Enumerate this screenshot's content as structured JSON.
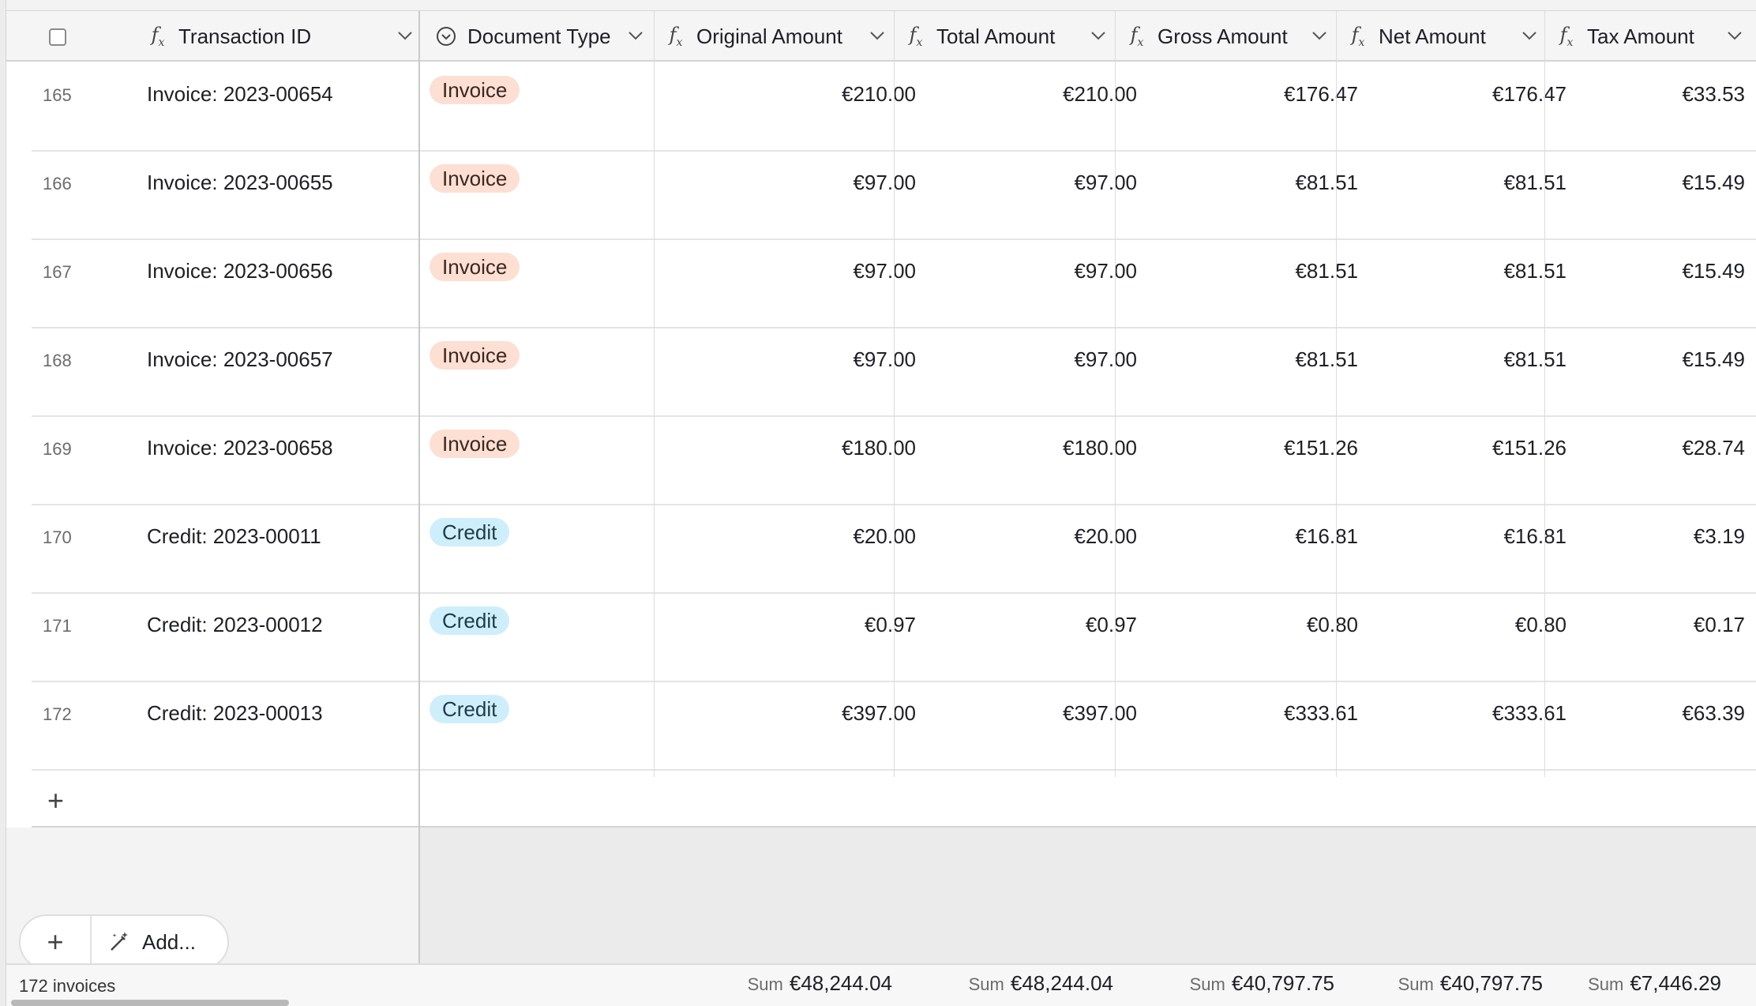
{
  "header": {
    "columns": [
      {
        "label": "Transaction ID",
        "icon": "formula-icon"
      },
      {
        "label": "Document Type",
        "icon": "single-select-icon"
      },
      {
        "label": "Original Amount",
        "icon": "formula-icon"
      },
      {
        "label": "Total Amount",
        "icon": "formula-icon"
      },
      {
        "label": "Gross Amount",
        "icon": "formula-icon"
      },
      {
        "label": "Net Amount",
        "icon": "formula-icon"
      },
      {
        "label": "Tax Amount",
        "icon": "formula-icon"
      }
    ]
  },
  "rows": [
    {
      "num": "165",
      "txid": "Invoice: 2023-00654",
      "type": "Invoice",
      "original": "€210.00",
      "total": "€210.00",
      "gross": "€176.47",
      "net": "€176.47",
      "tax": "€33.53"
    },
    {
      "num": "166",
      "txid": "Invoice: 2023-00655",
      "type": "Invoice",
      "original": "€97.00",
      "total": "€97.00",
      "gross": "€81.51",
      "net": "€81.51",
      "tax": "€15.49"
    },
    {
      "num": "167",
      "txid": "Invoice: 2023-00656",
      "type": "Invoice",
      "original": "€97.00",
      "total": "€97.00",
      "gross": "€81.51",
      "net": "€81.51",
      "tax": "€15.49"
    },
    {
      "num": "168",
      "txid": "Invoice: 2023-00657",
      "type": "Invoice",
      "original": "€97.00",
      "total": "€97.00",
      "gross": "€81.51",
      "net": "€81.51",
      "tax": "€15.49"
    },
    {
      "num": "169",
      "txid": "Invoice: 2023-00658",
      "type": "Invoice",
      "original": "€180.00",
      "total": "€180.00",
      "gross": "€151.26",
      "net": "€151.26",
      "tax": "€28.74"
    },
    {
      "num": "170",
      "txid": "Credit: 2023-00011",
      "type": "Credit",
      "original": "€20.00",
      "total": "€20.00",
      "gross": "€16.81",
      "net": "€16.81",
      "tax": "€3.19"
    },
    {
      "num": "171",
      "txid": "Credit: 2023-00012",
      "type": "Credit",
      "original": "€0.97",
      "total": "€0.97",
      "gross": "€0.80",
      "net": "€0.80",
      "tax": "€0.17"
    },
    {
      "num": "172",
      "txid": "Credit: 2023-00013",
      "type": "Credit",
      "original": "€397.00",
      "total": "€397.00",
      "gross": "€333.61",
      "net": "€333.61",
      "tax": "€63.39"
    }
  ],
  "pill_colors": {
    "Invoice": "#fddfd3",
    "Credit": "#cfeefc"
  },
  "actions": {
    "add_label": "Add..."
  },
  "footer": {
    "record_count": "172 invoices",
    "sum_label": "Sum",
    "sums": {
      "original": "€48,244.04",
      "total": "€48,244.04",
      "gross": "€40,797.75",
      "net": "€40,797.75",
      "tax": "€7,446.29"
    }
  }
}
